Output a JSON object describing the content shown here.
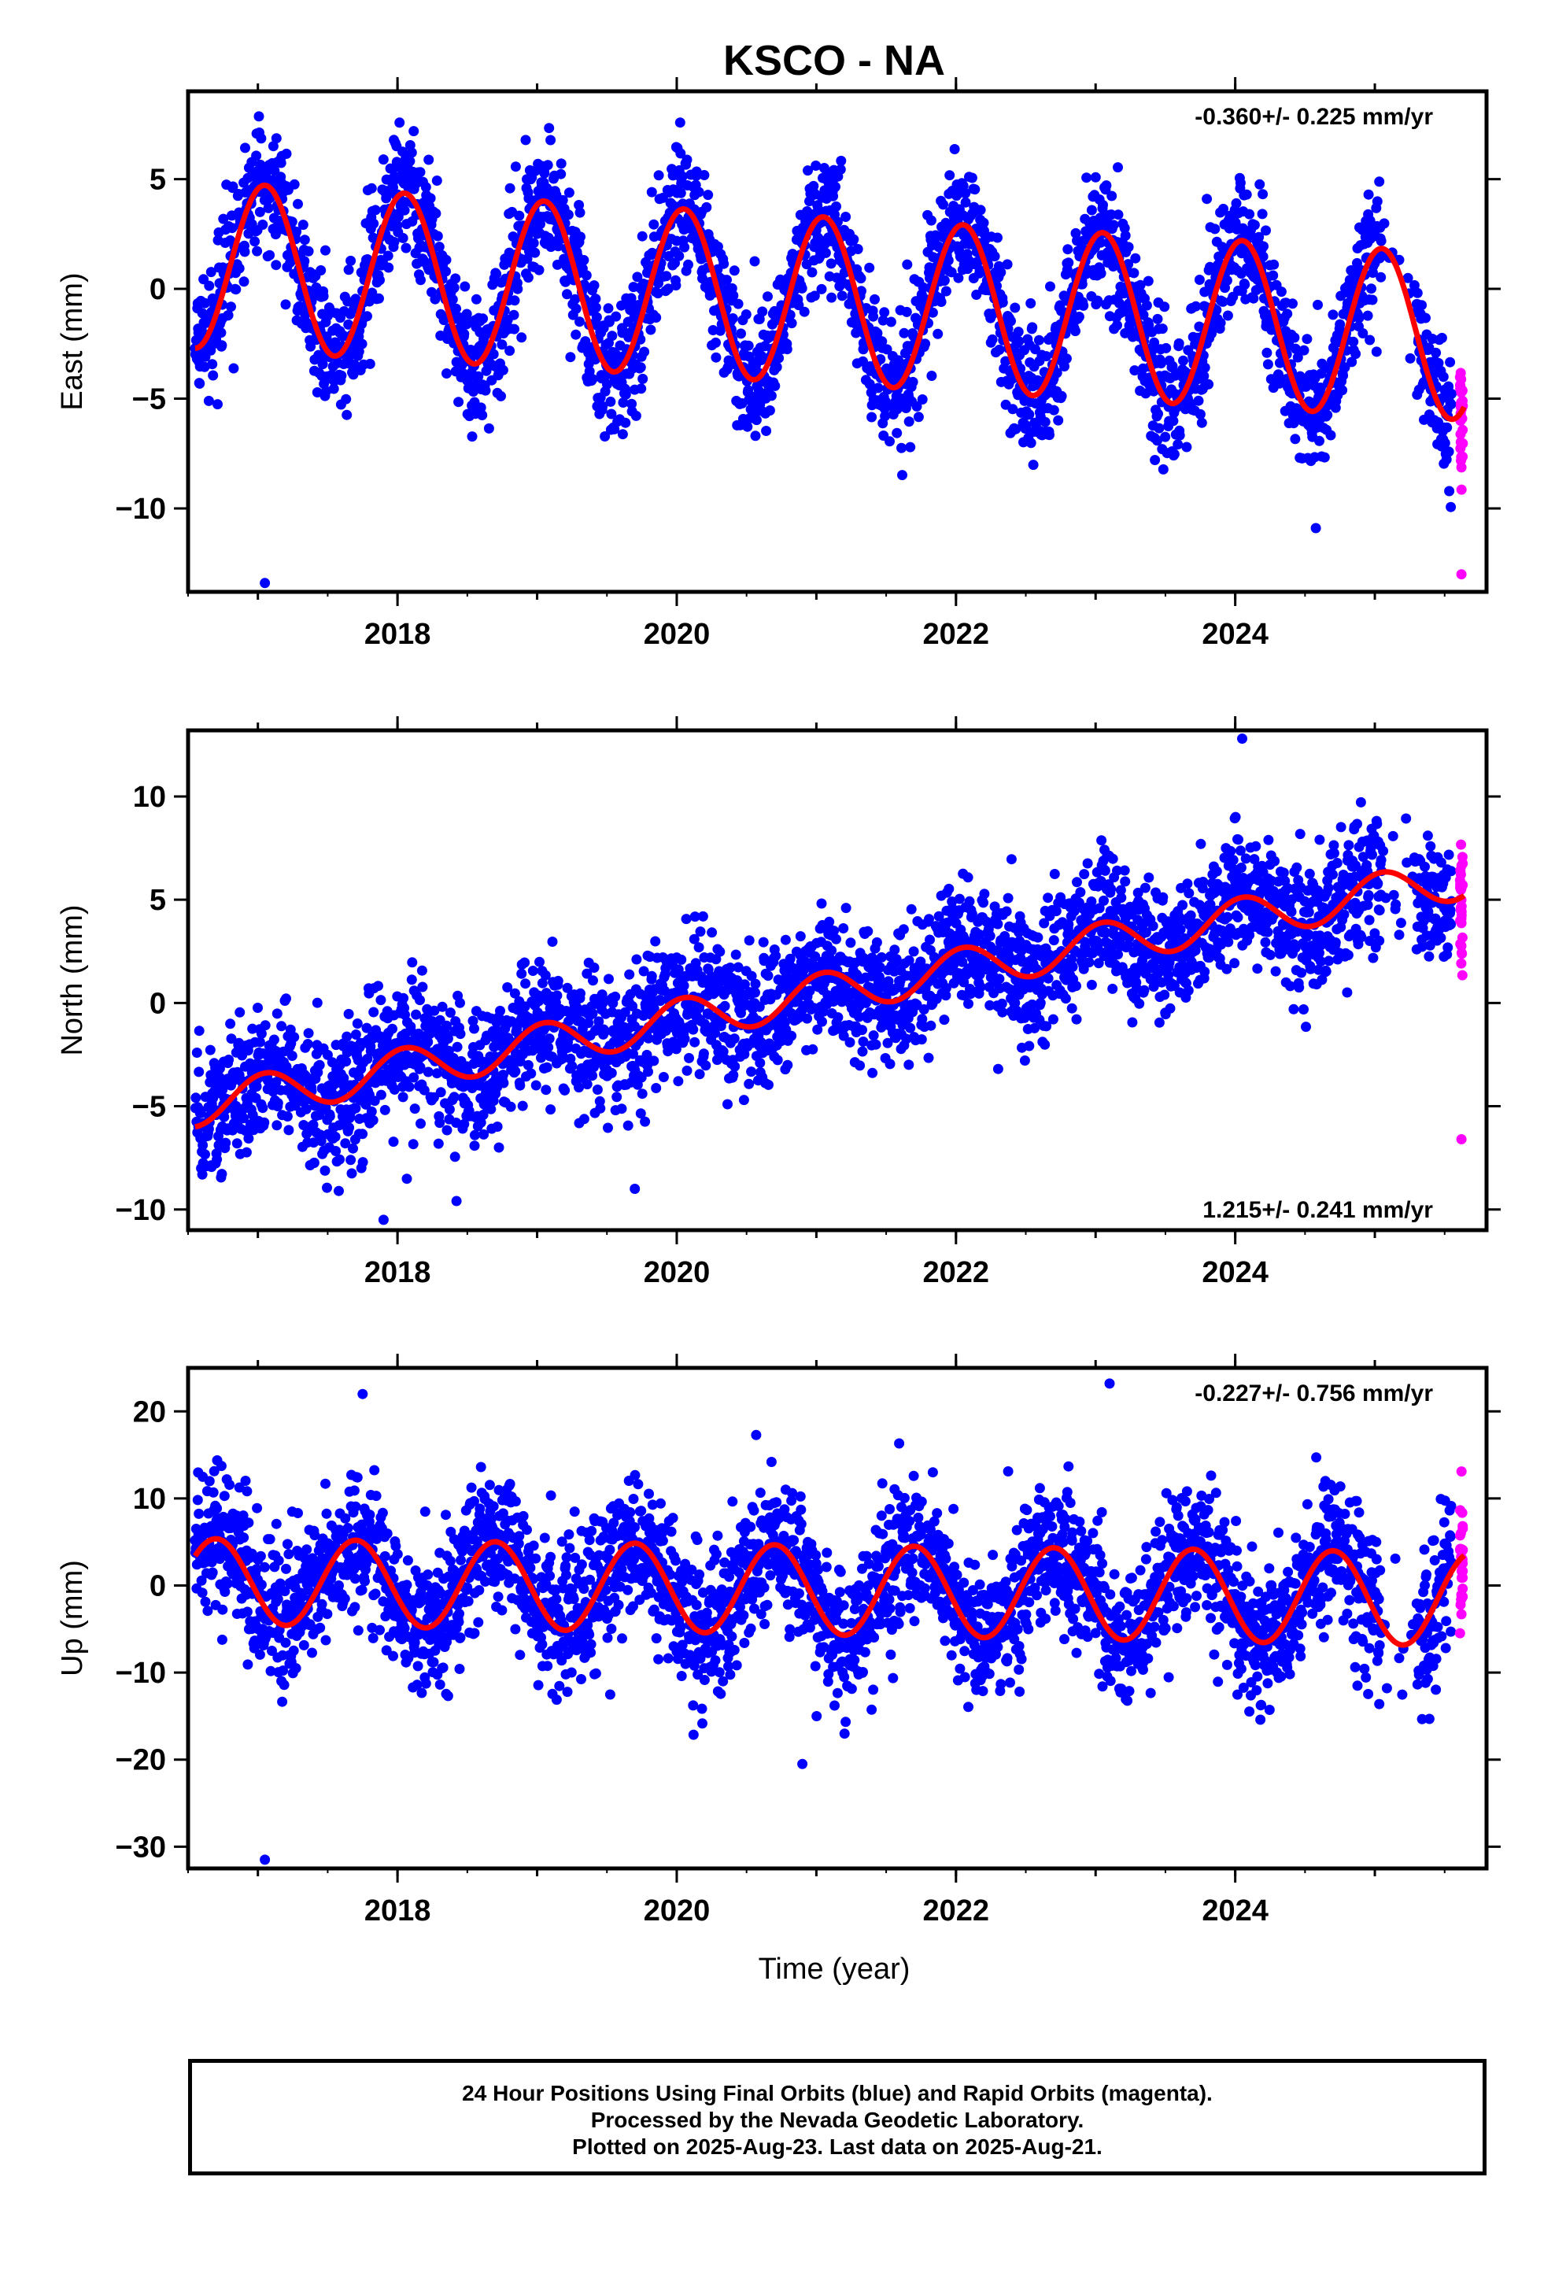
{
  "title": "KSCO - NA",
  "xlabel": "Time (year)",
  "footer": {
    "line1": "24 Hour Positions Using Final Orbits (blue) and Rapid Orbits (magenta).",
    "line2": "Processed by the Nevada Geodetic Laboratory.",
    "line3": "Plotted on 2025-Aug-23. Last data on 2025-Aug-21."
  },
  "colors": {
    "final": "#0000ff",
    "rapid": "#ff00ff",
    "fit": "#ff0000",
    "frame": "#000000"
  },
  "chart_data": [
    {
      "type": "scatter",
      "ylabel": "East (mm)",
      "rate_label": "-0.360+/- 0.225 mm/yr",
      "rate_position": "top-right",
      "xlim": [
        2016.5,
        2025.8
      ],
      "ylim": [
        -13.8,
        9
      ],
      "xticks": [
        2018,
        2020,
        2022,
        2024
      ],
      "yticks": [
        -10,
        -5,
        0,
        5
      ],
      "data_span": [
        2016.55,
        2025.55
      ],
      "rapid_span": [
        2025.56,
        2025.64
      ],
      "model": {
        "t0": 2016.55,
        "offset": 1.1,
        "rate": -0.36,
        "amplitude": 3.8,
        "amplitude_change": 0,
        "peak_year_fraction": 0.05,
        "noise": 1.5
      },
      "outliers": [
        [
          2017.05,
          -13.4
        ],
        [
          2025.62,
          -13.0
        ]
      ]
    },
    {
      "type": "scatter",
      "ylabel": "North (mm)",
      "rate_label": "1.215+/- 0.241 mm/yr",
      "rate_position": "bottom-right",
      "xlim": [
        2016.5,
        2025.8
      ],
      "ylim": [
        -11,
        13.2
      ],
      "xticks": [
        2018,
        2020,
        2022,
        2024
      ],
      "yticks": [
        -10,
        -5,
        0,
        5,
        10
      ],
      "data_span": [
        2016.55,
        2025.55
      ],
      "rapid_span": [
        2025.56,
        2025.64
      ],
      "model": {
        "t0": 2016.55,
        "offset": -5.0,
        "rate": 1.215,
        "amplitude": 1.0,
        "amplitude_change": 0,
        "peak_year_fraction": 0.05,
        "noise": 1.6
      },
      "outliers": [
        [
          2017.9,
          -10.5
        ],
        [
          2019.7,
          -9.0
        ],
        [
          2024.05,
          12.8
        ],
        [
          2025.62,
          -6.6
        ]
      ]
    },
    {
      "type": "scatter",
      "ylabel": "Up (mm)",
      "rate_label": "-0.227+/- 0.756 mm/yr",
      "rate_position": "top-right",
      "xlim": [
        2016.5,
        2025.8
      ],
      "ylim": [
        -32.5,
        25
      ],
      "xticks": [
        2018,
        2020,
        2022,
        2024
      ],
      "yticks": [
        -30,
        -20,
        -10,
        0,
        10,
        20
      ],
      "data_span": [
        2016.55,
        2025.55
      ],
      "rapid_span": [
        2025.56,
        2025.64
      ],
      "model": {
        "t0": 2016.55,
        "offset": 0.5,
        "rate": -0.227,
        "amplitude": 4.9,
        "amplitude_change": 0.1,
        "peak_year_fraction": 0.7,
        "noise": 4.2
      },
      "outliers": [
        [
          2017.05,
          -31.5
        ],
        [
          2023.1,
          23.2
        ],
        [
          2020.9,
          -20.5
        ],
        [
          2017.75,
          22.0
        ]
      ]
    }
  ]
}
